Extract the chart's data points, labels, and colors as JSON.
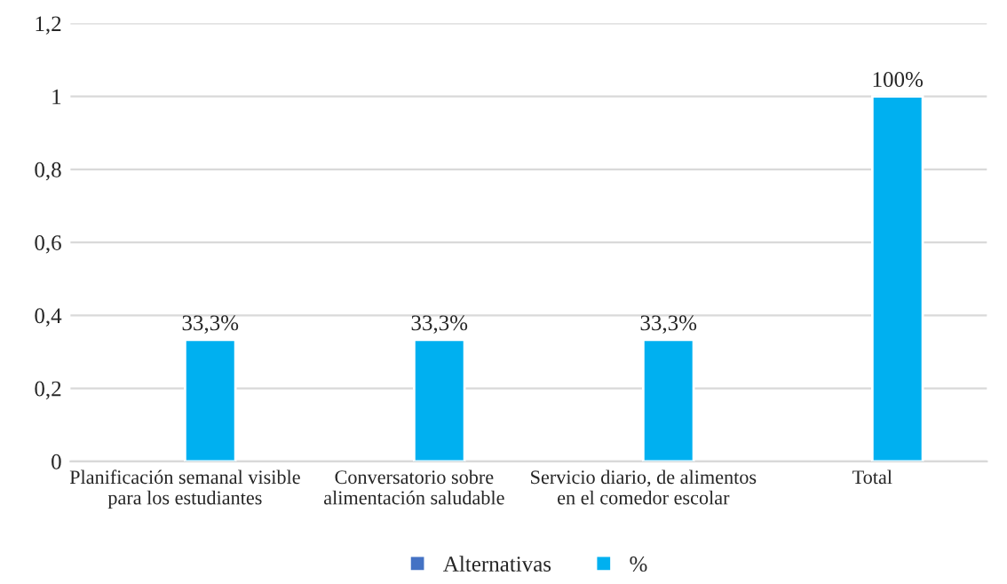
{
  "chart_data": {
    "type": "bar",
    "categories": [
      "Planificación semanal visible para los estudiantes",
      "Conversatorio sobre alimentación saludable",
      "Servicio diario, de alimentos en el comedor escolar",
      "Total"
    ],
    "series": [
      {
        "name": "Alternativas",
        "color": "#4472c4",
        "values": [
          null,
          null,
          null,
          null
        ]
      },
      {
        "name": "%",
        "color": "#00b0f0",
        "values": [
          0.333,
          0.333,
          0.333,
          1
        ],
        "value_labels": [
          "33,3%",
          "33,3%",
          "33,3%",
          "100%"
        ]
      }
    ],
    "ylim": [
      0,
      1.2
    ],
    "yticks": [
      0,
      {
        "value": 0.2,
        "label": "0,2"
      },
      {
        "value": 0.4,
        "label": "0,4"
      },
      {
        "value": 0.6,
        "label": "0,6"
      },
      {
        "value": 0.8,
        "label": "0,8"
      },
      1,
      {
        "value": 1.2,
        "label": "1,2"
      }
    ],
    "grid": "y",
    "legend": "bottom"
  }
}
